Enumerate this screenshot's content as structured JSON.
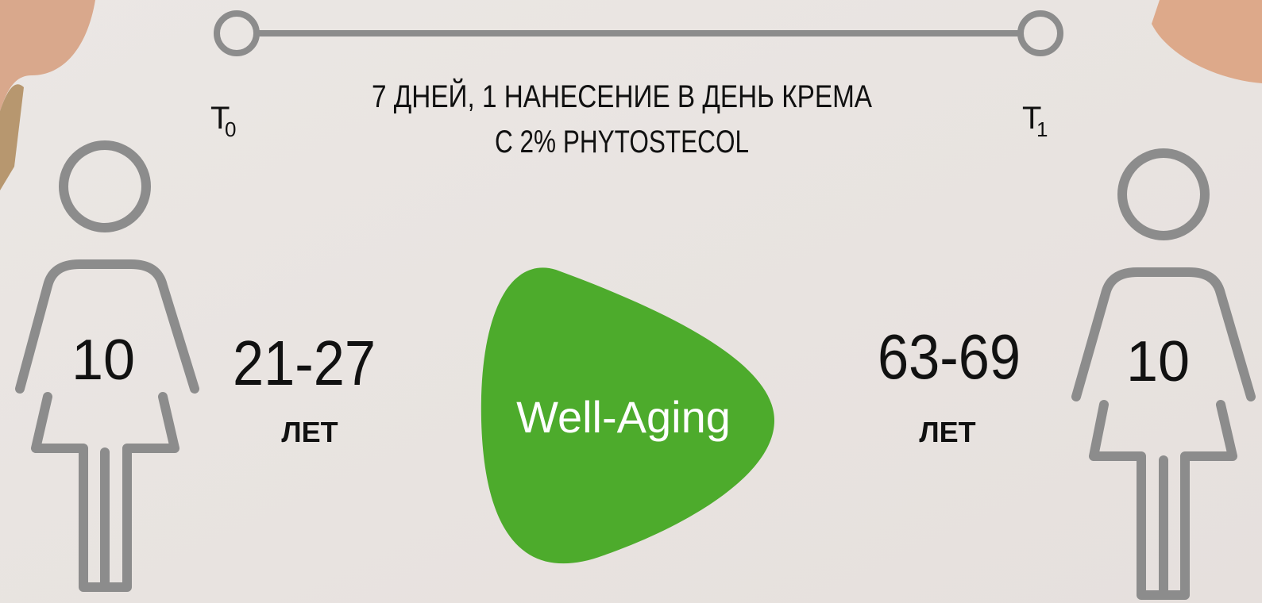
{
  "timeline": {
    "start": {
      "label": "T",
      "subscript": "0"
    },
    "end": {
      "label": "T",
      "subscript": "1"
    },
    "caption": [
      "7 ДНЕЙ, 1 НАНЕСЕНИЕ В ДЕНЬ КРЕМА",
      "С 2% PHYTOSTECOL"
    ]
  },
  "groups": [
    {
      "count": "10",
      "age": "21-27",
      "unit": "ЛЕТ"
    },
    {
      "count": "10",
      "age": "63-69",
      "unit": "ЛЕТ"
    }
  ],
  "badge": "Well-Aging"
}
